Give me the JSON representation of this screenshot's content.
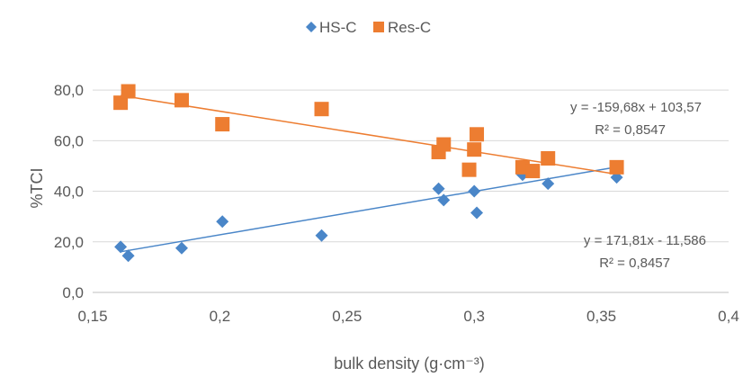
{
  "chart_data": {
    "type": "scatter",
    "title": "",
    "xlabel": "bulk density (g·cm⁻³)",
    "ylabel": "%TCI",
    "xlim": [
      0.15,
      0.4
    ],
    "ylim": [
      0,
      90
    ],
    "x_ticks": [
      0.15,
      0.2,
      0.25,
      0.3,
      0.35,
      0.4
    ],
    "x_tick_labels": [
      "0,15",
      "0,2",
      "0,25",
      "0,3",
      "0,35",
      "0,4"
    ],
    "y_ticks": [
      0,
      20,
      40,
      60,
      80
    ],
    "y_tick_labels": [
      "0,0",
      "20,0",
      "40,0",
      "60,0",
      "80,0"
    ],
    "grid": "horizontal",
    "legend_position": "top",
    "series": [
      {
        "name": "HS-C",
        "marker": "diamond",
        "color": "#4a86c8",
        "x": [
          0.161,
          0.164,
          0.185,
          0.201,
          0.24,
          0.286,
          0.288,
          0.3,
          0.301,
          0.319,
          0.329,
          0.356
        ],
        "y": [
          18.0,
          14.5,
          17.5,
          28.0,
          22.5,
          41.0,
          36.5,
          40.0,
          31.5,
          46.5,
          43.0,
          45.5
        ],
        "trendline": {
          "slope": 171.81,
          "intercept": -11.586,
          "x_range": [
            0.161,
            0.356
          ],
          "equation": "y = 171,81x - 11,586",
          "r2": "R² = 0,8457"
        }
      },
      {
        "name": "Res-C",
        "marker": "square",
        "color": "#ed7d31",
        "x": [
          0.161,
          0.164,
          0.185,
          0.201,
          0.24,
          0.286,
          0.288,
          0.298,
          0.3,
          0.301,
          0.319,
          0.323,
          0.329,
          0.356
        ],
        "y": [
          75.0,
          79.5,
          76.0,
          66.5,
          72.5,
          55.5,
          58.5,
          48.5,
          56.5,
          62.5,
          49.5,
          48.0,
          53.0,
          49.5
        ],
        "trendline": {
          "slope": -159.68,
          "intercept": 103.57,
          "x_range": [
            0.161,
            0.356
          ],
          "equation": "y = -159,68x + 103,57",
          "r2": "R² = 0,8547"
        }
      }
    ]
  }
}
